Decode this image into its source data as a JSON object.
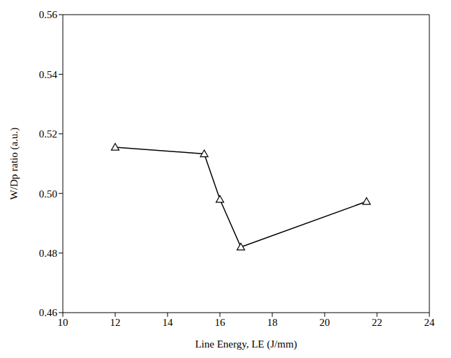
{
  "chart_data": {
    "type": "line",
    "x_label": "Line Energy, LE (J/mm)",
    "y_label": "W/Dp ratio (a.u.)",
    "x": [
      12,
      15.4,
      16,
      16.8,
      21.6
    ],
    "series": [
      {
        "name": "W/Dp",
        "color": "#000000",
        "marker": "triangle",
        "values": [
          0.5155,
          0.5133,
          0.498,
          0.482,
          0.4973
        ]
      }
    ],
    "xlim": [
      10,
      24
    ],
    "xticks": [
      10,
      12,
      14,
      16,
      18,
      20,
      22,
      24
    ],
    "ylim": [
      0.46,
      0.56
    ],
    "yticks": [
      0.46,
      0.48,
      {
        "value": 0.5,
        "label": "0.50"
      },
      0.52,
      0.54,
      0.56
    ],
    "grid": false
  }
}
